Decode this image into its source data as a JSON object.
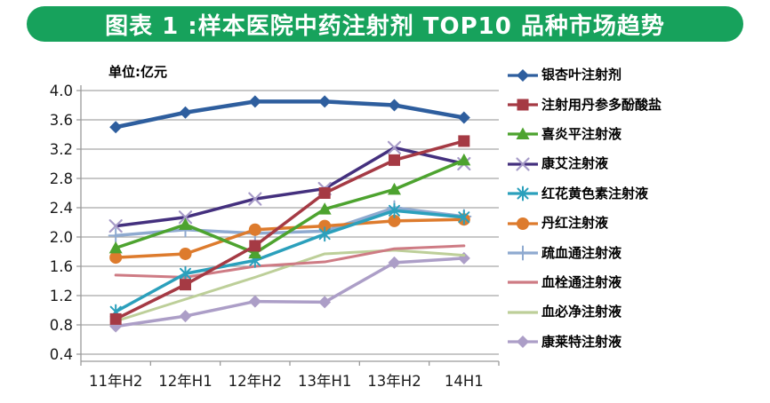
{
  "title": "图表 1 :样本医院中药注射剂 TOP10 品种市场趋势",
  "unit_label": "单位:亿元",
  "colors": {
    "banner": "#17A25C",
    "banner_text": "#FFFFFF",
    "grid": "#A6A6A6",
    "axis": "#9A9A9A",
    "tick_text": "#1A1A1A"
  },
  "chart_data": {
    "type": "line",
    "title": "图表 1 :样本医院中药注射剂 TOP10 品种市场趋势",
    "unit": "单位:亿元",
    "categories": [
      "11年H2",
      "12年H1",
      "12年H2",
      "13年H1",
      "13年H2",
      "14H1"
    ],
    "ylim": [
      0.4,
      4.0
    ],
    "ytick_step": 0.4,
    "yticks": [
      "4.0",
      "3.6",
      "3.2",
      "2.8",
      "2.4",
      "2.0",
      "1.6",
      "1.2",
      "0.8",
      "0.4"
    ],
    "grid": true,
    "legend_position": "right",
    "series": [
      {
        "name": "银杏叶注射剂",
        "color": "#2E5E9E",
        "marker": "diamond",
        "line_width": 4.5,
        "values": [
          3.5,
          3.7,
          3.85,
          3.85,
          3.8,
          3.63
        ]
      },
      {
        "name": "注射用丹参多酚酸盐",
        "color": "#A53A44",
        "marker": "square",
        "line_width": 3.5,
        "values": [
          0.88,
          1.35,
          1.88,
          2.6,
          3.05,
          3.31
        ]
      },
      {
        "name": "喜炎平注射液",
        "color": "#4DA32F",
        "marker": "triangle",
        "line_width": 3.5,
        "values": [
          1.85,
          2.17,
          1.78,
          2.38,
          2.65,
          3.05
        ]
      },
      {
        "name": "康艾注射液",
        "color": "#44307E",
        "marker": "x",
        "marker_color": "#A79BC8",
        "line_width": 3.5,
        "values": [
          2.15,
          2.27,
          2.52,
          2.66,
          3.22,
          3.0
        ]
      },
      {
        "name": "红花黄色素注射液",
        "color": "#2BA0BC",
        "marker": "asterisk",
        "line_width": 3.5,
        "values": [
          0.98,
          1.5,
          1.68,
          2.04,
          2.36,
          2.27
        ]
      },
      {
        "name": "丹红注射液",
        "color": "#DD7B2D",
        "marker": "circle",
        "line_width": 3.5,
        "values": [
          1.72,
          1.77,
          2.1,
          2.15,
          2.22,
          2.24
        ]
      },
      {
        "name": "疏血通注射液",
        "color": "#8FAAD0",
        "marker": "plus",
        "line_width": 3.5,
        "values": [
          2.02,
          2.1,
          2.05,
          2.08,
          2.4,
          2.28
        ]
      },
      {
        "name": "血栓通注射液",
        "color": "#CE7B84",
        "marker": "none",
        "line_width": 3.0,
        "values": [
          1.48,
          1.45,
          1.6,
          1.66,
          1.84,
          1.88
        ]
      },
      {
        "name": "血必净注射液",
        "color": "#BDCF99",
        "marker": "none",
        "line_width": 3.0,
        "values": [
          0.85,
          1.15,
          1.45,
          1.77,
          1.82,
          1.75
        ]
      },
      {
        "name": "康莱特注射液",
        "color": "#AC9EC7",
        "marker": "diamond",
        "line_width": 3.5,
        "values": [
          0.78,
          0.92,
          1.12,
          1.11,
          1.65,
          1.71
        ]
      }
    ]
  }
}
